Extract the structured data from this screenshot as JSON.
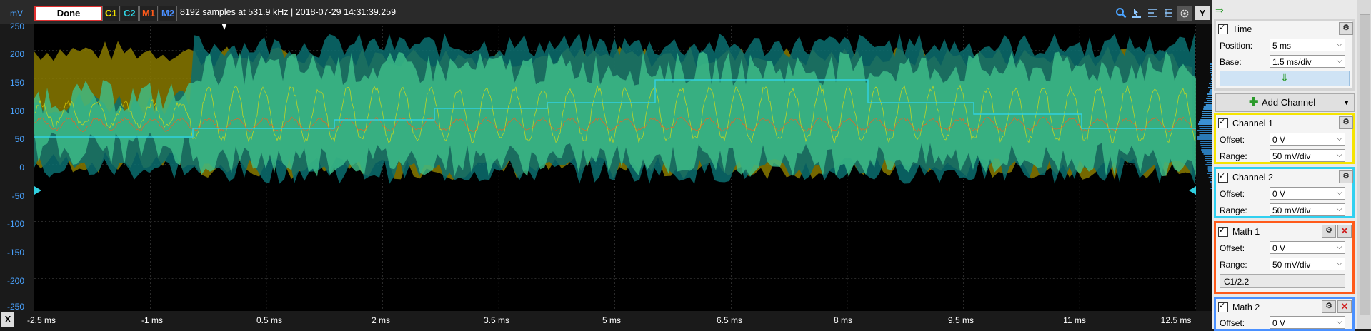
{
  "toolbar": {
    "unit": "mV",
    "done_label": "Done",
    "channels": [
      {
        "label": "C1",
        "color": "#f5e400"
      },
      {
        "label": "C2",
        "color": "#30d0e0"
      },
      {
        "label": "M1",
        "color": "#ff5a1a"
      },
      {
        "label": "M2",
        "color": "#4a90ff"
      }
    ],
    "acquisition_info": "8192 samples at 531.9 kHz | 2018-07-29 14:31:39.259",
    "y_button": "Y"
  },
  "plot": {
    "y_ticks": [
      "250",
      "200",
      "150",
      "100",
      "50",
      "0",
      "-50",
      "-100",
      "-150",
      "-200",
      "-250"
    ],
    "x_button": "X",
    "x_ticks": [
      "-2.5 ms",
      "-1 ms",
      "0.5 ms",
      "2 ms",
      "3.5 ms",
      "5 ms",
      "6.5 ms",
      "8 ms",
      "9.5 ms",
      "11 ms",
      "12.5 ms"
    ]
  },
  "panel": {
    "time": {
      "title": "Time",
      "position_label": "Position:",
      "position_value": "5 ms",
      "base_label": "Base:",
      "base_value": "1.5 ms/div"
    },
    "add_channel_label": "Add Channel",
    "channel1": {
      "title": "Channel 1",
      "offset_label": "Offset:",
      "offset_value": "0 V",
      "range_label": "Range:",
      "range_value": "50 mV/div",
      "border": "#f5e400"
    },
    "channel2": {
      "title": "Channel 2",
      "offset_label": "Offset:",
      "offset_value": "0 V",
      "range_label": "Range:",
      "range_value": "50 mV/div",
      "border": "#30d0f0"
    },
    "math1": {
      "title": "Math 1",
      "offset_label": "Offset:",
      "offset_value": "0 V",
      "range_label": "Range:",
      "range_value": "50 mV/div",
      "expression": "C1/2.2",
      "border": "#ff5a1a"
    },
    "math2": {
      "title": "Math 2",
      "offset_label": "Offset:",
      "offset_value": "0 V",
      "border": "#4a90ff"
    }
  }
}
